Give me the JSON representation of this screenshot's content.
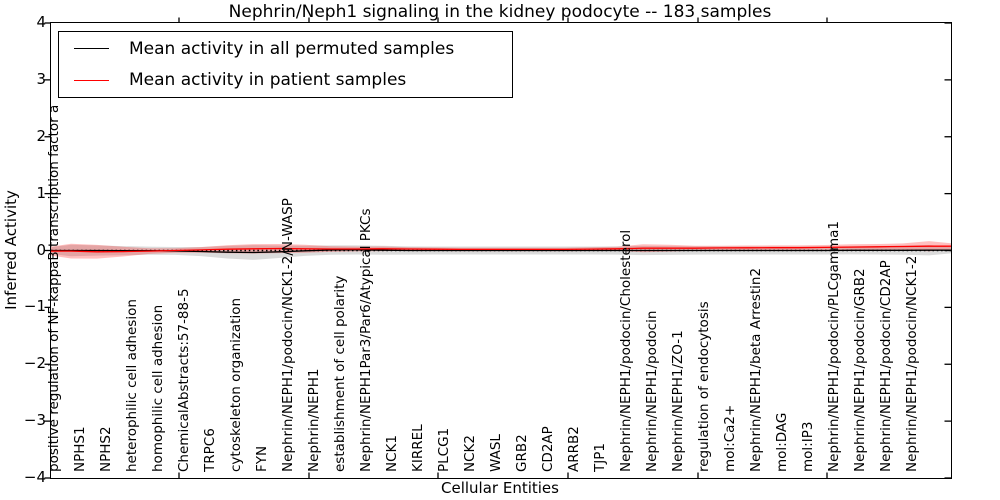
{
  "title": "Nephrin/Neph1 signaling in the kidney podocyte -- 183 samples",
  "axes": {
    "ylabel": "Inferred Activity",
    "xlabel": "Cellular Entities",
    "ytick_labels": [
      "4",
      "3",
      "2",
      "1",
      "0",
      "−1",
      "−2",
      "−3",
      "−4"
    ]
  },
  "legend": {
    "entries": [
      {
        "label": "Mean activity in all permuted samples",
        "color": "#000000"
      },
      {
        "label": "Mean activity in patient samples",
        "color": "#ff0000"
      }
    ]
  },
  "chart_data": {
    "type": "line",
    "title": "Nephrin/Neph1 signaling in the kidney podocyte -- 183 samples",
    "xlabel": "Cellular Entities",
    "ylabel": "Inferred Activity",
    "ylim": [
      -4,
      4
    ],
    "grid": false,
    "legend_position": "upper left",
    "zero_line": true,
    "categories": [
      "positive regulation of NF-kappaB transcription factor a",
      "NPHS1",
      "NPHS2",
      "heterophilic cell adhesion",
      "homophilic cell adhesion",
      "ChemicalAbstracts:57-88-5",
      "TRPC6",
      "cytoskeleton organization",
      "FYN",
      "Nephrin/NEPH1/podocin/NCK1-2/N-WASP",
      "Nephrin/NEPH1",
      "establishment of cell polarity",
      "Nephrin/NEPH1Par3/Par6/Atypical PKCs",
      "NCK1",
      "KIRREL",
      "PLCG1",
      "NCK2",
      "WASL",
      "GRB2",
      "CD2AP",
      "ARRB2",
      "TJP1",
      "Nephrin/NEPH1/podocin/Cholesterol",
      "Nephrin/NEPH1/podocin",
      "Nephrin/NEPH1/ZO-1",
      "regulation of endocytosis",
      "mol:Ca2+",
      "Nephrin/NEPH1/beta Arrestin2",
      "mol:DAG",
      "mol:IP3",
      "Nephrin/NEPH1/podocin/PLCgamma1",
      "Nephrin/NEPH1/podocin/GRB2",
      "Nephrin/NEPH1/podocin/CD2AP",
      "Nephrin/NEPH1/podocin/NCK1-2"
    ],
    "series": [
      {
        "name": "Mean activity in all permuted samples",
        "color": "#000000",
        "band_color": "rgba(0,0,0,0.14)",
        "values": [
          0.0,
          0.0,
          -0.002,
          -0.004,
          -0.008,
          -0.018,
          -0.03,
          -0.035,
          -0.022,
          -0.005,
          0.008,
          0.01,
          0.005,
          0.0,
          0.0,
          0.0,
          0.0,
          0.0,
          0.0,
          0.0,
          0.0,
          0.0,
          0.0,
          0.0,
          0.0,
          0.0,
          0.0,
          0.0,
          0.0,
          0.0,
          0.003,
          0.004,
          0.004,
          0.005
        ],
        "band_halfwidth": [
          0.1,
          0.09,
          0.08,
          0.072,
          0.07,
          0.08,
          0.11,
          0.13,
          0.11,
          0.09,
          0.082,
          0.08,
          0.078,
          0.072,
          0.07,
          0.07,
          0.07,
          0.07,
          0.07,
          0.07,
          0.07,
          0.072,
          0.08,
          0.078,
          0.072,
          0.07,
          0.07,
          0.07,
          0.07,
          0.07,
          0.072,
          0.074,
          0.08,
          0.092
        ]
      },
      {
        "name": "Mean activity in patient samples",
        "color": "#ff0000",
        "band_color": "rgba(255,0,0,0.25)",
        "values": [
          -0.01,
          -0.022,
          -0.02,
          -0.01,
          0.0,
          0.01,
          0.022,
          0.03,
          0.035,
          0.03,
          0.026,
          0.026,
          0.03,
          0.026,
          0.022,
          0.02,
          0.02,
          0.02,
          0.02,
          0.02,
          0.024,
          0.03,
          0.04,
          0.04,
          0.04,
          0.045,
          0.048,
          0.05,
          0.05,
          0.055,
          0.06,
          0.065,
          0.07,
          0.075
        ],
        "band_halfwidth": [
          0.13,
          0.12,
          0.085,
          0.05,
          0.04,
          0.05,
          0.07,
          0.082,
          0.08,
          0.07,
          0.05,
          0.042,
          0.04,
          0.032,
          0.03,
          0.03,
          0.03,
          0.03,
          0.03,
          0.03,
          0.032,
          0.036,
          0.07,
          0.06,
          0.042,
          0.04,
          0.04,
          0.04,
          0.04,
          0.042,
          0.05,
          0.05,
          0.055,
          0.09
        ]
      }
    ]
  }
}
